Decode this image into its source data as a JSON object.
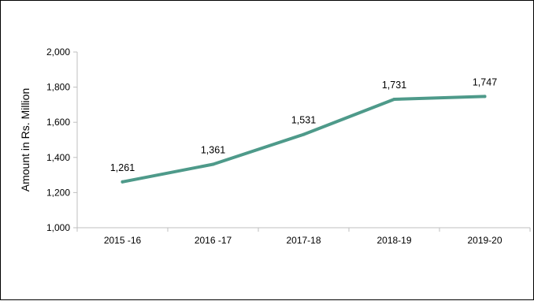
{
  "chart_data": {
    "type": "line",
    "title": "",
    "xlabel": "",
    "ylabel": "Amount in Rs. Million",
    "categories": [
      "2015 -16",
      "2016 -17",
      "2017-18",
      "2018-19",
      "2019-20"
    ],
    "series": [
      {
        "values": [
          1261,
          1361,
          1531,
          1731,
          1747
        ],
        "data_labels": [
          "1,261",
          "1,361",
          "1,531",
          "1,731",
          "1,747"
        ],
        "color": "#4e9a8a"
      }
    ],
    "ylim": [
      1000,
      2000
    ],
    "yticks": [
      1000,
      1200,
      1400,
      1600,
      1800,
      2000
    ],
    "ytick_labels": [
      "1,000",
      "1,200",
      "1,400",
      "1,600",
      "1,800",
      "2,000"
    ],
    "grid": false,
    "legend": "none",
    "axis_color": "#bfbfbf"
  }
}
